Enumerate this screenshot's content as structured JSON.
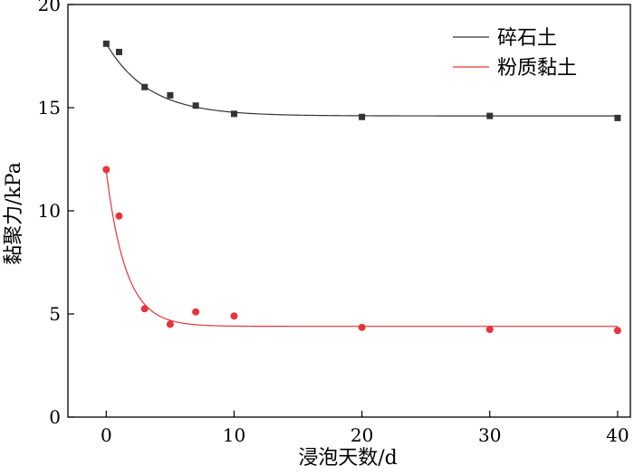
{
  "chart_data": {
    "type": "scatter",
    "xlabel": "浸泡天数/d",
    "ylabel": "黏聚力/kPa",
    "xlim": [
      -3,
      41
    ],
    "ylim": [
      0,
      20
    ],
    "x_ticks": [
      0,
      10,
      20,
      30,
      40
    ],
    "y_ticks": [
      0,
      5,
      10,
      15,
      20
    ],
    "grid": false,
    "legend_position": "top-right",
    "series": [
      {
        "name": "碎石土",
        "color": "#333333",
        "marker": "square",
        "x": [
          0,
          1,
          3,
          5,
          7,
          10,
          20,
          30,
          40
        ],
        "y": [
          18.1,
          17.7,
          16.0,
          15.6,
          15.1,
          14.7,
          14.55,
          14.6,
          14.5
        ],
        "fit": {
          "model": "exponential",
          "base": 14.6,
          "amplitude": 3.5,
          "rate": 0.3
        }
      },
      {
        "name": "粉质黏土",
        "color": "#e8333a",
        "marker": "circle",
        "x": [
          0,
          1,
          3,
          5,
          7,
          10,
          20,
          30,
          40
        ],
        "y": [
          12.0,
          9.75,
          5.25,
          4.5,
          5.1,
          4.9,
          4.35,
          4.25,
          4.2
        ],
        "fit": {
          "model": "exponential",
          "base": 4.4,
          "amplitude": 7.5,
          "rate": 0.65
        }
      }
    ]
  }
}
